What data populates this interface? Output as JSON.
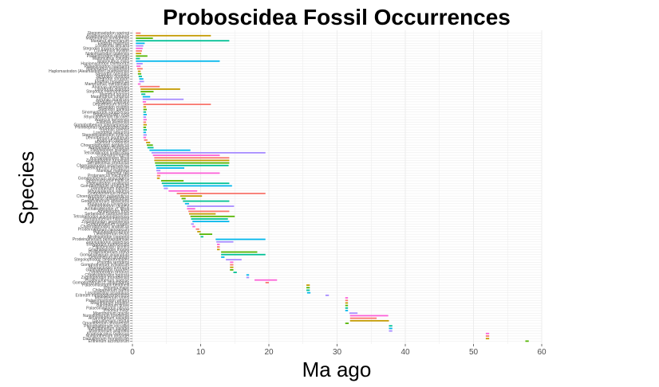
{
  "chart_data": {
    "type": "range-bar",
    "title": "Proboscidea Fossil Occurrences",
    "xlabel": "Ma ago",
    "ylabel": "Species",
    "xlim": [
      0,
      60
    ],
    "xticks": [
      0,
      10,
      20,
      30,
      40,
      50,
      60
    ],
    "grid": true,
    "legend": "none",
    "palette": [
      "#F8766D",
      "#C49A00",
      "#53B400",
      "#00C094",
      "#00B6EB",
      "#A58AFF",
      "#FB61D7"
    ],
    "species": [
      {
        "name": "Stegomastodon waringi",
        "start": 0.5,
        "end": 1.2
      },
      {
        "name": "Palaeoloxodon antiquus",
        "start": 0.5,
        "end": 11.5
      },
      {
        "name": "Mammuthus primigenius",
        "start": 0.5,
        "end": 3.0
      },
      {
        "name": "Mammut americanum",
        "start": 0.5,
        "end": 14.2
      },
      {
        "name": "Elephas maximus",
        "start": 0.5,
        "end": 1.8
      },
      {
        "name": "Loxodonta africana",
        "start": 0.5,
        "end": 1.6
      },
      {
        "name": "Stegodon trigonocephalus",
        "start": 0.5,
        "end": 1.5
      },
      {
        "name": "Cuvieronius hyodon",
        "start": 0.5,
        "end": 1.4
      },
      {
        "name": "Notiomastodon platensis",
        "start": 0.5,
        "end": 1.3
      },
      {
        "name": "Palaeoloxodon falconeri",
        "start": 0.5,
        "end": 2.2
      },
      {
        "name": "Mammuthus columbi",
        "start": 0.5,
        "end": 1.1
      },
      {
        "name": "Mammuthus exilis",
        "start": 0.5,
        "end": 12.8
      },
      {
        "name": "Haplomastodon chimborazi",
        "start": 0.6,
        "end": 1.5
      },
      {
        "name": "Palaeoloxodon naumanni",
        "start": 0.6,
        "end": 1.2
      },
      {
        "name": "Mammuthus trogontherii",
        "start": 0.7,
        "end": 1.5
      },
      {
        "name": "Haplomastodon (Aleamastodon) guayasensis",
        "start": 0.8,
        "end": 1.2
      },
      {
        "name": "Stegodon orientalis",
        "start": 0.8,
        "end": 1.3
      },
      {
        "name": "Stegodon florensis",
        "start": 0.9,
        "end": 1.4
      },
      {
        "name": "Stegodon sondaari",
        "start": 1.0,
        "end": 1.6
      },
      {
        "name": "Elephas hysudricus",
        "start": 1.0,
        "end": 1.7
      },
      {
        "name": "Mammuthus meridionalis",
        "start": 0.8,
        "end": 1.2
      },
      {
        "name": "Anancus arvernensis",
        "start": 1.1,
        "end": 4.0
      },
      {
        "name": "Loxodonta atlantica",
        "start": 1.2,
        "end": 7.0
      },
      {
        "name": "Stegodon elephantoides",
        "start": 1.2,
        "end": 3.1
      },
      {
        "name": "Mammut borsoni",
        "start": 1.3,
        "end": 1.9
      },
      {
        "name": "Mammuthus rumanus",
        "start": 1.5,
        "end": 2.6
      },
      {
        "name": "Elephas planifrons",
        "start": 1.5,
        "end": 7.5
      },
      {
        "name": "Stegodon zdanskyi",
        "start": 1.5,
        "end": 2.0
      },
      {
        "name": "Deinotherium bozasi",
        "start": 1.6,
        "end": 11.5
      },
      {
        "name": "Stegodon insignis",
        "start": 1.6,
        "end": 2.0
      },
      {
        "name": "Stegodon ganesa",
        "start": 1.6,
        "end": 2.1
      },
      {
        "name": "Sinomastodon yangziensis",
        "start": 1.6,
        "end": 2.0
      },
      {
        "name": "Palaeoloxodon recki",
        "start": 1.6,
        "end": 2.1
      },
      {
        "name": "Rhynchotherium falconeri",
        "start": 1.6,
        "end": 2.0
      },
      {
        "name": "Anancus kenyensis",
        "start": 1.6,
        "end": 2.1
      },
      {
        "name": "Elephas ekorensis",
        "start": 1.6,
        "end": 2.0
      },
      {
        "name": "Gomphotherium steinheimense",
        "start": 1.6,
        "end": 2.1
      },
      {
        "name": "Primelephas gomphotheroides",
        "start": 1.6,
        "end": 2.0
      },
      {
        "name": "Elephas iolensis",
        "start": 1.6,
        "end": 2.1
      },
      {
        "name": "Loxodonta adaurora",
        "start": 1.6,
        "end": 2.0
      },
      {
        "name": "Stegotetrabelodon syrticus",
        "start": 1.6,
        "end": 2.1
      },
      {
        "name": "Deinotherium giganteum",
        "start": 1.6,
        "end": 2.0
      },
      {
        "name": "Anancus capensis",
        "start": 1.7,
        "end": 2.2
      },
      {
        "name": "Mammut cosoensis",
        "start": 2.0,
        "end": 2.6
      },
      {
        "name": "Choerolophodon pentelicus",
        "start": 2.1,
        "end": 3.0
      },
      {
        "name": "Amebelodon floridanus",
        "start": 2.2,
        "end": 3.1
      },
      {
        "name": "Platybelodon grangeri",
        "start": 2.5,
        "end": 8.5
      },
      {
        "name": "Tetralophodon longirostris",
        "start": 2.8,
        "end": 19.5
      },
      {
        "name": "Eubelodon morrilli",
        "start": 3.0,
        "end": 12.8
      },
      {
        "name": "Archaeobelodon filholi",
        "start": 3.2,
        "end": 14.2
      },
      {
        "name": "Zygolophodon turicensis",
        "start": 3.2,
        "end": 14.2
      },
      {
        "name": "Serridentinus productus",
        "start": 3.3,
        "end": 14.2
      },
      {
        "name": "Choerolophodon kisumuensis",
        "start": 3.4,
        "end": 14.1
      },
      {
        "name": "Prodeinotherium bavaricum",
        "start": 3.5,
        "end": 7.6
      },
      {
        "name": "Mammut matthewi",
        "start": 3.5,
        "end": 4.1
      },
      {
        "name": "Mammut raki",
        "start": 3.6,
        "end": 12.8
      },
      {
        "name": "Protanancus macinnesi",
        "start": 3.6,
        "end": 4.1
      },
      {
        "name": "Gomphotherium angustidens",
        "start": 3.6,
        "end": 4.0
      },
      {
        "name": "Stegomastodon mirificus",
        "start": 4.2,
        "end": 7.5
      },
      {
        "name": "Pliomastodon vexillarius",
        "start": 4.3,
        "end": 14.2
      },
      {
        "name": "Gomphotherium productum",
        "start": 4.5,
        "end": 14.6
      },
      {
        "name": "Deinotherium indicum",
        "start": 4.6,
        "end": 5.2
      },
      {
        "name": "Stegolophodon latidens",
        "start": 5.3,
        "end": 9.5
      },
      {
        "name": "Gomphotherium browni",
        "start": 6.5,
        "end": 19.5
      },
      {
        "name": "Choerolophodon palaeindicus",
        "start": 7.0,
        "end": 10.2
      },
      {
        "name": "Mammut obliquelophus",
        "start": 7.2,
        "end": 7.8
      },
      {
        "name": "Gomphotherium annectens",
        "start": 7.4,
        "end": 14.2
      },
      {
        "name": "Protanancus chinjiensis",
        "start": 7.7,
        "end": 8.3
      },
      {
        "name": "Stegolophodon cautleyi",
        "start": 8.0,
        "end": 14.9
      },
      {
        "name": "Archaeobelodon cf. filholi",
        "start": 8.0,
        "end": 9.2
      },
      {
        "name": "Amebelodon fricki",
        "start": 8.2,
        "end": 14.2
      },
      {
        "name": "Serbelodon barbourensis",
        "start": 8.3,
        "end": 12.2
      },
      {
        "name": "Tetralophodon xiaolongtanensis",
        "start": 8.5,
        "end": 15.0
      },
      {
        "name": "Gomphotherium hannibali",
        "start": 8.6,
        "end": 14.0
      },
      {
        "name": "Zygolophodon aegyptensis",
        "start": 8.8,
        "end": 14.2
      },
      {
        "name": "Gomphotherium cooperi",
        "start": 8.6,
        "end": 9.0
      },
      {
        "name": "Choerolophodon anatolicus",
        "start": 8.8,
        "end": 9.2
      },
      {
        "name": "Prodeinotherium hungaricum",
        "start": 9.3,
        "end": 9.8
      },
      {
        "name": "Platybelodon danovi",
        "start": 9.5,
        "end": 10.0
      },
      {
        "name": "Deinotherium levius",
        "start": 9.8,
        "end": 11.7
      },
      {
        "name": "Afromastodon coppensi",
        "start": 10.0,
        "end": 10.4
      },
      {
        "name": "Prodeinotherium pentapotamiae",
        "start": 12.2,
        "end": 19.5
      },
      {
        "name": "Zygolophodon gobiensis",
        "start": 12.3,
        "end": 14.8
      },
      {
        "name": "Eozygodon morotoensis",
        "start": 12.4,
        "end": 12.8
      },
      {
        "name": "Platybelodon loomisi",
        "start": 12.4,
        "end": 12.8
      },
      {
        "name": "Gnathabelodon thorpei",
        "start": 12.4,
        "end": 12.8
      },
      {
        "name": "Prodeinotherium orlovii",
        "start": 13.0,
        "end": 18.3
      },
      {
        "name": "Gomphotherium inopinatum",
        "start": 13.0,
        "end": 19.5
      },
      {
        "name": "Deinotherium proavum",
        "start": 13.0,
        "end": 13.5
      },
      {
        "name": "Stegolophodon stegodontoides",
        "start": 13.7,
        "end": 16.0
      },
      {
        "name": "Phiomia serridens",
        "start": 14.3,
        "end": 14.8
      },
      {
        "name": "Gomphotherium sylvaticum",
        "start": 14.3,
        "end": 14.8
      },
      {
        "name": "Miomastodon merriami",
        "start": 14.3,
        "end": 14.8
      },
      {
        "name": "Gnathabelodon buckneri",
        "start": 14.3,
        "end": 14.8
      },
      {
        "name": "Zygolophodon proavus",
        "start": 14.8,
        "end": 15.3
      },
      {
        "name": "Choerolophodon ngorora",
        "start": 16.7,
        "end": 17.1
      },
      {
        "name": "Zygolophodon morotoensis",
        "start": 16.7,
        "end": 17.1
      },
      {
        "name": "Prodeinotherium sinense",
        "start": 17.9,
        "end": 21.2
      },
      {
        "name": "Gomphotherium cf. angustidens",
        "start": 19.5,
        "end": 20.0
      },
      {
        "name": "Palaeomastodon beadnelli",
        "start": 25.5,
        "end": 26.0
      },
      {
        "name": "Phiomia major",
        "start": 25.5,
        "end": 26.0
      },
      {
        "name": "Chilgatherium harrisi",
        "start": 25.5,
        "end": 26.0
      },
      {
        "name": "Losodokodon losodokius",
        "start": 25.6,
        "end": 26.1
      },
      {
        "name": "Eritreum melakeghebrekristosi",
        "start": 28.3,
        "end": 28.8
      },
      {
        "name": "Moeritherium lyonsi",
        "start": 31.2,
        "end": 31.6
      },
      {
        "name": "Palaeomastodon wintoni",
        "start": 31.2,
        "end": 31.6
      },
      {
        "name": "Moeritherium trigodon",
        "start": 31.2,
        "end": 31.6
      },
      {
        "name": "Barytherium grave",
        "start": 31.2,
        "end": 31.6
      },
      {
        "name": "Palaeomastodon parvus",
        "start": 31.2,
        "end": 31.6
      },
      {
        "name": "Phiomia minor",
        "start": 31.2,
        "end": 31.6
      },
      {
        "name": "Moeritherium gracile",
        "start": 31.8,
        "end": 33.0
      },
      {
        "name": "Numidotherium koholense",
        "start": 31.9,
        "end": 37.5
      },
      {
        "name": "Arcanotherium savagei",
        "start": 31.9,
        "end": 35.8
      },
      {
        "name": "Daouitherium rebouli",
        "start": 31.9,
        "end": 37.6
      },
      {
        "name": "Omanitherium dhofarensis",
        "start": 31.2,
        "end": 31.7
      },
      {
        "name": "Phosphatherium escuilliei",
        "start": 37.6,
        "end": 38.1
      },
      {
        "name": "Numidotherium savagei",
        "start": 37.6,
        "end": 38.1
      },
      {
        "name": "Moeritherium andrewsi",
        "start": 37.6,
        "end": 38.1
      },
      {
        "name": "Khamsaconus bulbosus",
        "start": 51.8,
        "end": 52.3
      },
      {
        "name": "Numidotherium ansorgei",
        "start": 51.8,
        "end": 52.3
      },
      {
        "name": "Daouitherium mongolicum",
        "start": 51.8,
        "end": 52.3
      },
      {
        "name": "Eritherium azzouzorum",
        "start": 57.6,
        "end": 58.1
      }
    ]
  }
}
